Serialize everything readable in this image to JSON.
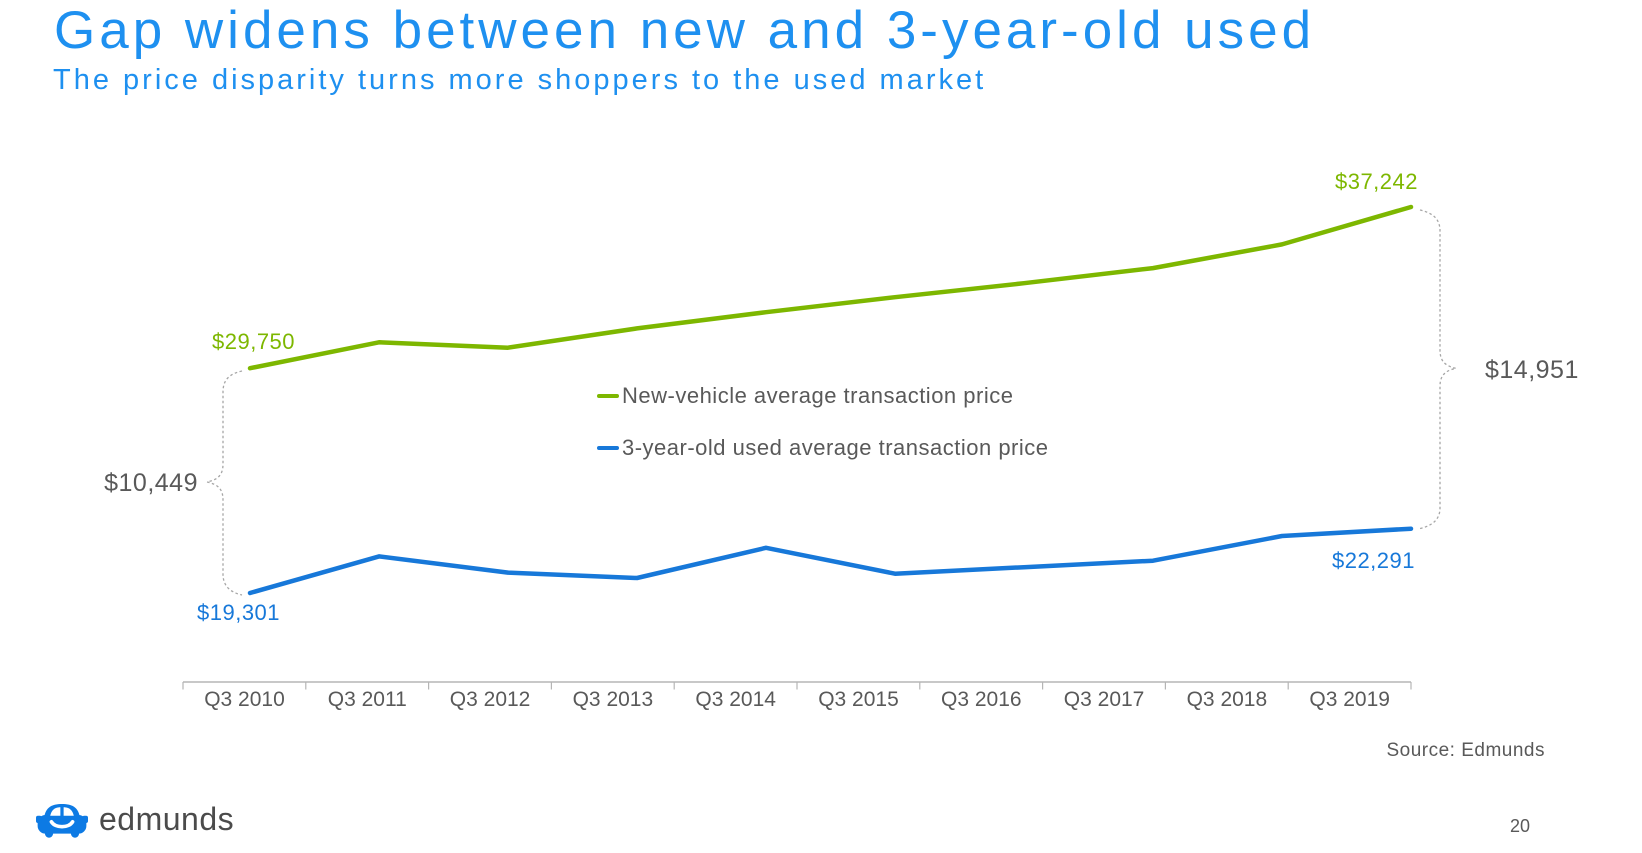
{
  "slide": {
    "title": "Gap widens between new and 3-year-old used",
    "subtitle": "The price disparity turns more shoppers to the used market",
    "source": "Source: Edmunds",
    "page_number": "20",
    "brand": "edmunds"
  },
  "colors": {
    "title_blue": "#1e90f0",
    "new_vehicle_green": "#7db700",
    "used_vehicle_blue": "#1778d9",
    "text_gray": "#595959",
    "axis_gray": "#b5b5b5",
    "brace_gray": "#a6a6a6",
    "logo_blue": "#0d7ae4"
  },
  "chart_data": {
    "type": "line",
    "title": "",
    "categories": [
      "Q3 2010",
      "Q3 2011",
      "Q3 2012",
      "Q3 2013",
      "Q3 2014",
      "Q3 2015",
      "Q3 2016",
      "Q3 2017",
      "Q3 2018",
      "Q3 2019"
    ],
    "series": [
      {
        "name": "New-vehicle average transaction price",
        "color": "#7db700",
        "values": [
          29750,
          30950,
          30700,
          31600,
          32350,
          33050,
          33700,
          34400,
          35500,
          37242
        ],
        "first_point_label": "$29,750",
        "last_point_label": "$37,242"
      },
      {
        "name": "3-year-old used average transaction price",
        "color": "#1778d9",
        "values": [
          19301,
          21000,
          20250,
          20000,
          21400,
          20200,
          20500,
          20800,
          21950,
          22291
        ],
        "first_point_label": "$19,301",
        "last_point_label": "$22,291"
      }
    ],
    "annotations": {
      "gap_2010": "$10,449",
      "gap_2019": "$14,951"
    },
    "grid": false,
    "legend_position": "center-inside",
    "ylim": [
      19000,
      38000
    ]
  }
}
